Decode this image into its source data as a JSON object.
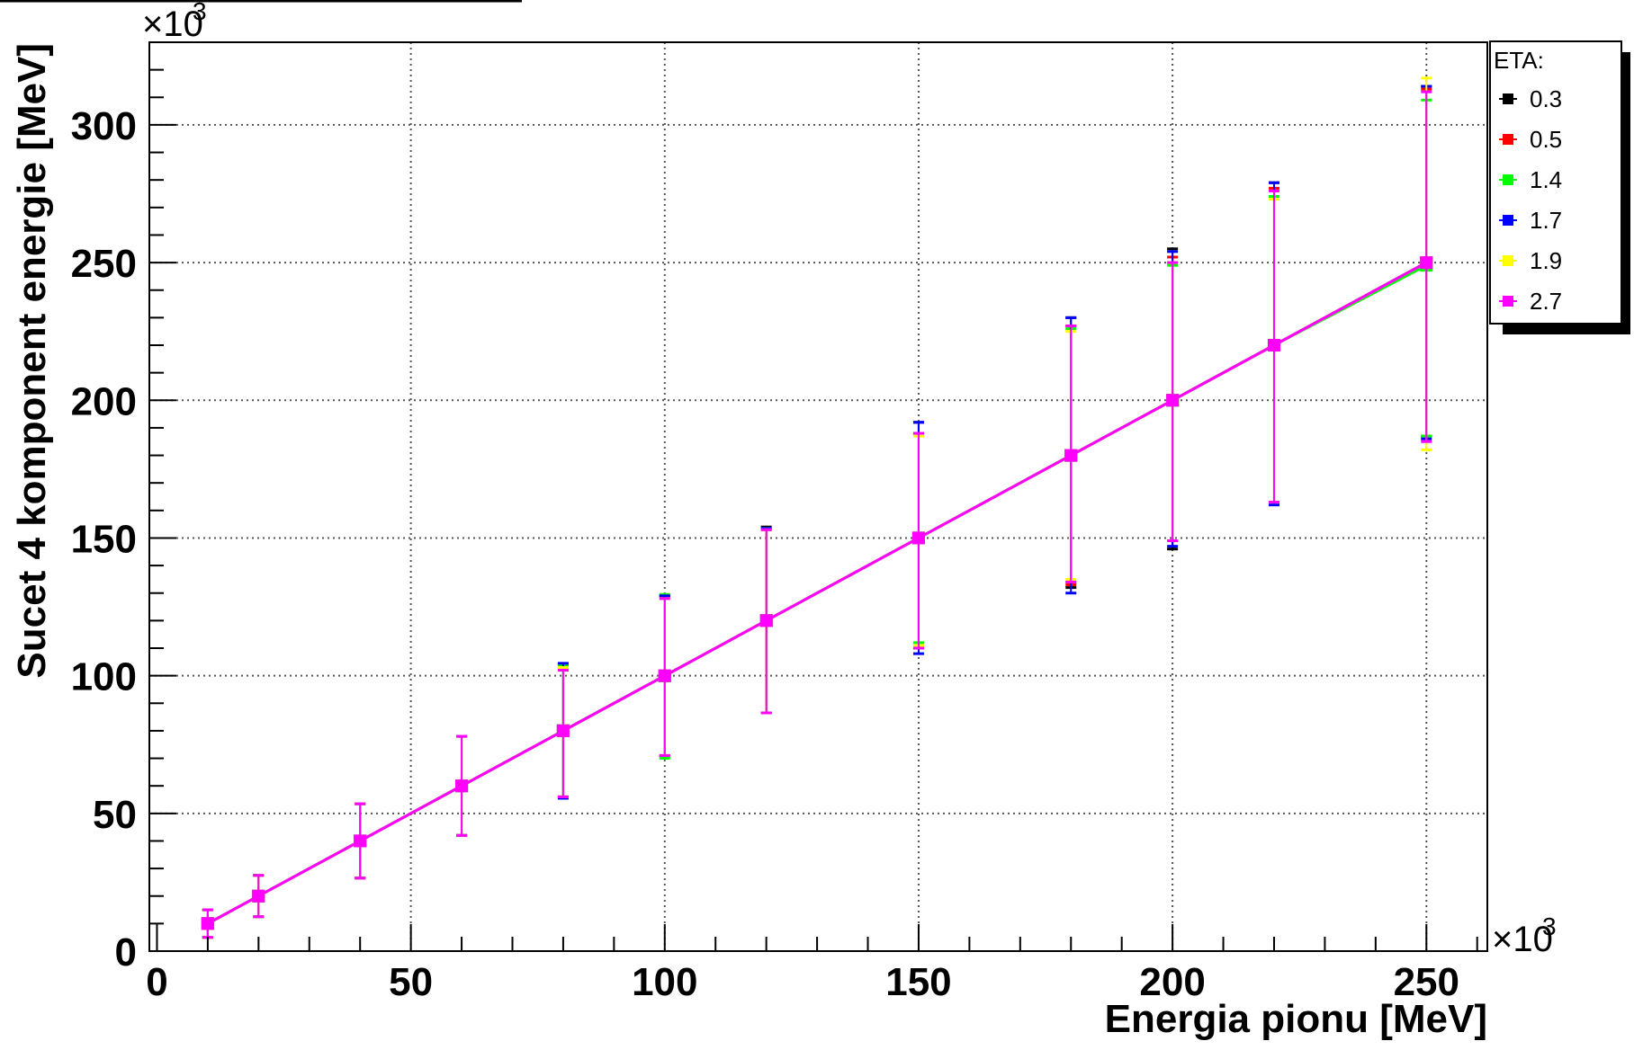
{
  "chart_data": {
    "type": "scatter",
    "title": "",
    "xlabel": "Energia pionu [MeV]",
    "ylabel": "Sucet 4 komponent energie [MeV]",
    "x_multiplier": "×10",
    "x_multiplier_exp": "3",
    "y_multiplier": "×10",
    "y_multiplier_exp": "3",
    "xlim": [
      -1.5,
      262
    ],
    "ylim": [
      0,
      330
    ],
    "x_ticks": [
      0,
      50,
      100,
      150,
      200,
      250
    ],
    "x_tick_labels": [
      "0",
      "50",
      "100",
      "150",
      "200",
      "250"
    ],
    "y_ticks": [
      0,
      50,
      100,
      150,
      200,
      250,
      300
    ],
    "y_tick_labels": [
      "0",
      "50",
      "100",
      "150",
      "200",
      "250",
      "300"
    ],
    "grid": true,
    "legend": {
      "title": "ETA:",
      "placement": "top-right"
    },
    "series": [
      {
        "name": "0.3",
        "color": "#000000",
        "x": [
          10,
          20,
          40,
          60,
          80,
          100,
          120,
          150,
          180,
          200,
          220,
          250
        ],
        "y": [
          10,
          20,
          40,
          60,
          80,
          100,
          120,
          150,
          180,
          200,
          220,
          250
        ],
        "err_low": [
          5,
          7.5,
          13.5,
          18,
          24,
          29,
          33.5,
          40,
          48,
          54,
          57,
          63
        ],
        "err_high": [
          5,
          7.5,
          13.5,
          18,
          24,
          29,
          34,
          42,
          50,
          55,
          59,
          64
        ]
      },
      {
        "name": "0.5",
        "color": "#ff0000",
        "x": [
          10,
          20,
          40,
          60,
          80,
          100,
          120,
          150,
          180,
          200,
          220,
          250
        ],
        "y": [
          10,
          20,
          40,
          60,
          80,
          100,
          120,
          150,
          180,
          200,
          220,
          250
        ],
        "err_low": [
          5,
          7.5,
          13.5,
          18,
          24,
          29,
          33.5,
          39,
          47,
          51,
          57,
          63
        ],
        "err_high": [
          5,
          7.5,
          13.5,
          18,
          23,
          29,
          33,
          38,
          47,
          52,
          57,
          63
        ]
      },
      {
        "name": "1.4",
        "color": "#00ff00",
        "x": [
          10,
          20,
          40,
          60,
          80,
          100,
          120,
          150,
          180,
          200,
          220,
          250
        ],
        "y": [
          10,
          20,
          40,
          60,
          80,
          100,
          120,
          150,
          180,
          200,
          220,
          249
        ],
        "err_low": [
          5,
          7.5,
          13.5,
          18,
          24,
          30,
          33.5,
          38,
          46,
          51,
          57,
          62
        ],
        "err_high": [
          5,
          7.5,
          13.5,
          18,
          24,
          29.5,
          33.5,
          38,
          46,
          49,
          54,
          60
        ]
      },
      {
        "name": "1.7",
        "color": "#0000ff",
        "x": [
          10,
          20,
          40,
          60,
          80,
          100,
          120,
          150,
          180,
          200,
          220,
          250
        ],
        "y": [
          10,
          20,
          40,
          60,
          80,
          100,
          120,
          150,
          180,
          200,
          220,
          250
        ],
        "err_low": [
          5,
          7.5,
          13.5,
          18,
          24.5,
          29,
          33.5,
          42,
          50,
          53,
          58,
          64
        ],
        "err_high": [
          5,
          7.5,
          13.5,
          18,
          24.5,
          29,
          33.5,
          42,
          50,
          54,
          59,
          64
        ]
      },
      {
        "name": "1.9",
        "color": "#ffff00",
        "x": [
          10,
          20,
          40,
          60,
          80,
          100,
          120,
          150,
          180,
          200,
          220,
          250
        ],
        "y": [
          10,
          20,
          40,
          60,
          80,
          100,
          120,
          150,
          180,
          200,
          220,
          250
        ],
        "err_low": [
          5,
          7.5,
          13.5,
          18,
          24,
          29,
          33.5,
          39,
          45,
          51,
          57,
          68
        ],
        "err_high": [
          5,
          7.5,
          13.5,
          18,
          23,
          28,
          33,
          37,
          45,
          50,
          53,
          67
        ]
      },
      {
        "name": "2.7",
        "color": "#ff00ff",
        "x": [
          10,
          20,
          40,
          60,
          80,
          100,
          120,
          150,
          180,
          200,
          220,
          250
        ],
        "y": [
          10,
          20,
          40,
          60,
          80,
          100,
          120,
          150,
          180,
          200,
          220,
          250
        ],
        "err_low": [
          5,
          7.5,
          13.5,
          18,
          24,
          29,
          33.5,
          40,
          46,
          51,
          57,
          65
        ],
        "err_high": [
          5,
          7.5,
          13.5,
          18,
          22,
          28,
          33,
          38,
          47,
          50,
          56,
          62
        ]
      }
    ]
  }
}
